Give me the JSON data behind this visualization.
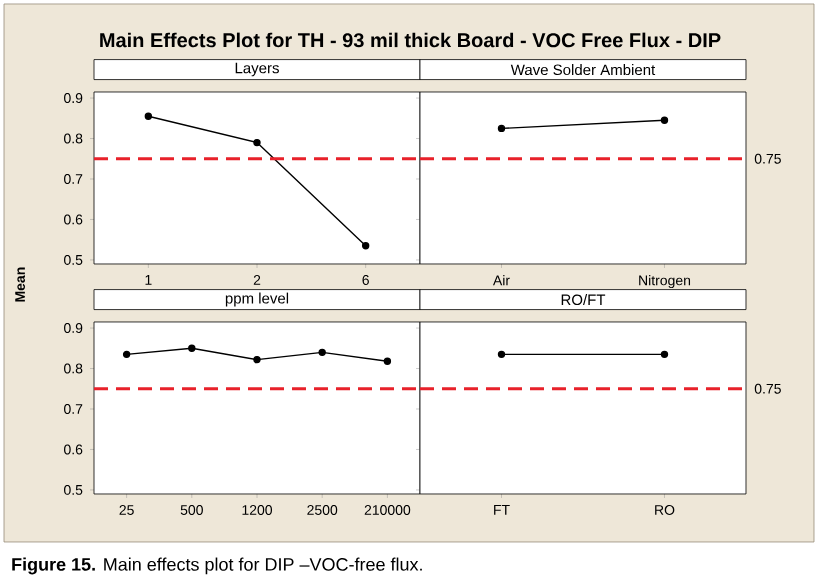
{
  "chart_data": [
    {
      "type": "line",
      "title": "Layers",
      "ylabel": "Mean",
      "categories": [
        "1",
        "2",
        "6"
      ],
      "series": [
        {
          "color": "#000000",
          "values": [
            0.855,
            0.79,
            0.535
          ]
        }
      ],
      "ylim": [
        0.49,
        0.915
      ],
      "yticks": [
        0.5,
        0.6,
        0.7,
        0.8,
        0.9
      ],
      "marker": "circle",
      "ref_lines": [
        {
          "axis": "y",
          "value": 0.75,
          "color": "#e8212a",
          "line_style": "dashed"
        }
      ],
      "annotations": [
        "Main Effects Plot for TH - 93 mil thick Board - VOC Free Flux - DIP"
      ]
    },
    {
      "type": "line",
      "title": "Wave Solder Ambient",
      "categories": [
        "Air",
        "Nitrogen"
      ],
      "series": [
        {
          "color": "#000000",
          "values": [
            0.825,
            0.845
          ]
        }
      ],
      "ylim": [
        0.49,
        0.915
      ],
      "yticks": [
        0.5,
        0.6,
        0.7,
        0.8,
        0.9
      ],
      "marker": "circle",
      "tick_labels": "x",
      "ref_lines": [
        {
          "axis": "y",
          "value": 0.75,
          "label": "0.75",
          "color": "#e8212a",
          "line_style": "dashed"
        }
      ]
    },
    {
      "type": "line",
      "title": "ppm level",
      "categories": [
        "25",
        "500",
        "1200",
        "2500",
        "210000"
      ],
      "series": [
        {
          "color": "#000000",
          "values": [
            0.835,
            0.85,
            0.822,
            0.84,
            0.818
          ]
        }
      ],
      "ylim": [
        0.49,
        0.915
      ],
      "yticks": [
        0.5,
        0.6,
        0.7,
        0.8,
        0.9
      ],
      "marker": "circle",
      "ref_lines": [
        {
          "axis": "y",
          "value": 0.75,
          "color": "#e8212a",
          "line_style": "dashed"
        }
      ],
      "annotations": [
        "**Figure 15.** Main effects plot for DIP –VOC-free flux."
      ]
    },
    {
      "type": "line",
      "title": "RO/FT",
      "categories": [
        "FT",
        "RO"
      ],
      "series": [
        {
          "color": "#000000",
          "values": [
            0.835,
            0.835
          ]
        }
      ],
      "ylim": [
        0.49,
        0.915
      ],
      "yticks": [
        0.5,
        0.6,
        0.7,
        0.8,
        0.9
      ],
      "marker": "circle",
      "tick_labels": "x",
      "ref_lines": [
        {
          "axis": "y",
          "value": 0.75,
          "label": "0.75",
          "color": "#e8212a",
          "line_style": "dashed"
        }
      ]
    }
  ]
}
